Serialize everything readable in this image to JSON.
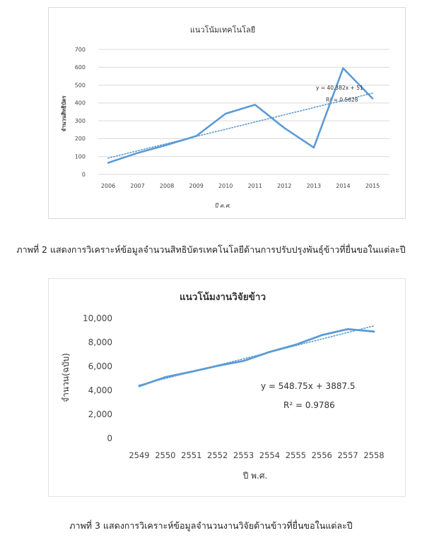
{
  "chart_data": [
    {
      "type": "line",
      "title": "แนวโน้มเทคโนโลยี",
      "xlabel": "ปี ค.ศ.",
      "ylabel": "จำนวนสิทธิบัตร",
      "categories": [
        "2006",
        "2007",
        "2008",
        "2009",
        "2010",
        "2011",
        "2012",
        "2013",
        "2014",
        "2015"
      ],
      "series": [
        {
          "values": [
            65,
            120,
            165,
            215,
            340,
            390,
            260,
            150,
            595,
            425
          ]
        }
      ],
      "trendline": {
        "type": "linear",
        "equation": "y = 40.382x + 51",
        "r2": "R² = 0.5628",
        "slope": 40.382,
        "intercept": 51
      },
      "ylim": [
        0,
        700
      ],
      "yticks": [
        "0",
        "100",
        "200",
        "300",
        "400",
        "500",
        "600",
        "700"
      ],
      "grid": true,
      "legend": "none",
      "colors": {
        "line": "#5b9bd5",
        "trend": "#5b9bd5",
        "grid": "#d9d9d9"
      }
    },
    {
      "type": "line",
      "title": "แนวโน้มงานวิจัยข้าว",
      "xlabel": "ปี พ.ศ.",
      "ylabel": "จำนวน(ฉบับ)",
      "categories": [
        "2549",
        "2550",
        "2551",
        "2552",
        "2553",
        "2554",
        "2555",
        "2556",
        "2557",
        "2558"
      ],
      "series": [
        {
          "values": [
            4350,
            5100,
            5550,
            6050,
            6450,
            7200,
            7800,
            8600,
            9100,
            8900
          ]
        }
      ],
      "trendline": {
        "type": "linear",
        "equation": "y = 548.75x + 3887.5",
        "r2": "R² = 0.9786",
        "slope": 548.75,
        "intercept": 3887.5
      },
      "ylim": [
        0,
        10000
      ],
      "yticks": [
        "0",
        "2,000",
        "4,000",
        "6,000",
        "8,000",
        "10,000"
      ],
      "grid": false,
      "legend": "none",
      "colors": {
        "line": "#5b9bd5",
        "trend": "#5b9bd5"
      }
    }
  ],
  "captions": {
    "fig2": "ภาพที่ 2 แสดงการวิเคราะห์ข้อมูลจำนวนสิทธิบัตรเทคโนโลยีด้านการปรับปรุงพันธุ์ข้าวที่ยื่นขอในแต่ละปี",
    "fig3": "ภาพที่ 3 แสดงการวิเคราะห์ข้อมูลจำนวนงานวิจัยด้านข้าวที่ยื่นขอในแต่ละปี"
  }
}
